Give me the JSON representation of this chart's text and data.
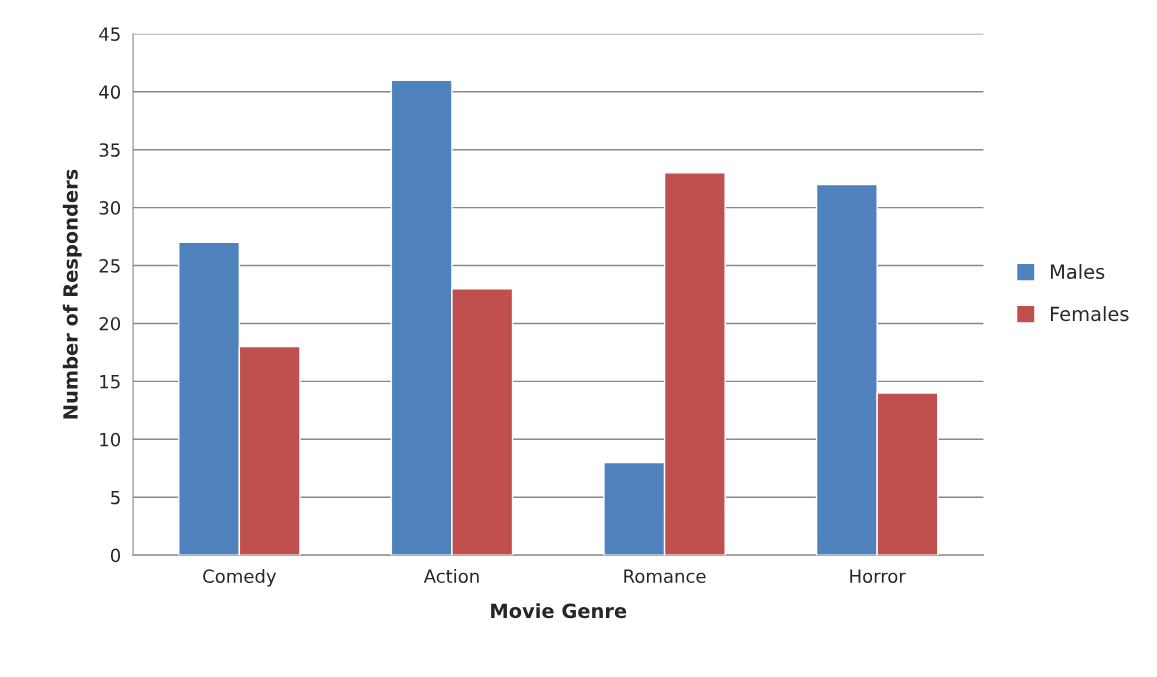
{
  "chart_data": {
    "type": "bar",
    "xlabel": "Movie Genre",
    "ylabel": "Number of Responders",
    "categories": [
      "Comedy",
      "Action",
      "Romance",
      "Horror"
    ],
    "series": [
      {
        "name": "Males",
        "color": "#4f81bd",
        "values": [
          27,
          41,
          8,
          32
        ]
      },
      {
        "name": "Females",
        "color": "#c0504d",
        "values": [
          18,
          23,
          33,
          14
        ]
      }
    ],
    "ylim": [
      0,
      45
    ],
    "yticks": [
      0,
      5,
      10,
      15,
      20,
      25,
      30,
      35,
      40,
      45
    ],
    "grid": "y",
    "legend": "right"
  }
}
